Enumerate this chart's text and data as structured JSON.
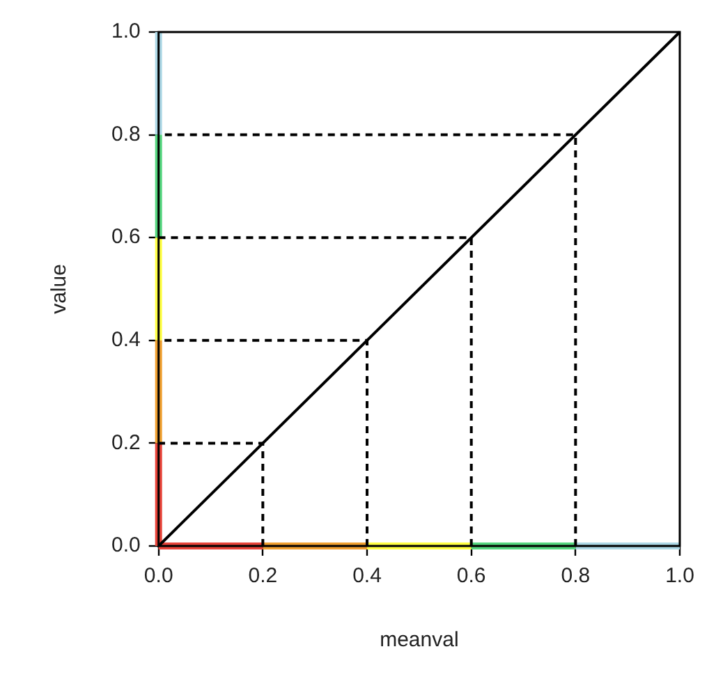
{
  "chart_data": {
    "type": "line",
    "xlabel": "meanval",
    "ylabel": "value",
    "xlim": [
      0,
      1
    ],
    "ylim": [
      0,
      1
    ],
    "xticks": [
      {
        "value": 0,
        "label": "0.0"
      },
      {
        "value": 0.2,
        "label": "0.2"
      },
      {
        "value": 0.4,
        "label": "0.4"
      },
      {
        "value": 0.6,
        "label": "0.6"
      },
      {
        "value": 0.8,
        "label": "0.8"
      },
      {
        "value": 1,
        "label": "1.0"
      }
    ],
    "yticks": [
      {
        "value": 0,
        "label": "0.0"
      },
      {
        "value": 0.2,
        "label": "0.2"
      },
      {
        "value": 0.4,
        "label": "0.4"
      },
      {
        "value": 0.6,
        "label": "0.6"
      },
      {
        "value": 0.8,
        "label": "0.8"
      },
      {
        "value": 1,
        "label": "1.0"
      }
    ],
    "grid": false,
    "legend": false,
    "marker": "none",
    "series": [
      {
        "x": [
          0,
          1
        ],
        "values": [
          0,
          1
        ],
        "color": "#000000",
        "line_style": "solid"
      },
      {
        "x": [
          0.2,
          0.2,
          0
        ],
        "values": [
          0,
          0.2,
          0.2
        ],
        "color": "#000000",
        "line_style": "dashed"
      },
      {
        "x": [
          0.4,
          0.4,
          0
        ],
        "values": [
          0,
          0.4,
          0.4
        ],
        "color": "#000000",
        "line_style": "dashed"
      },
      {
        "x": [
          0.6,
          0.6,
          0
        ],
        "values": [
          0,
          0.6,
          0.6
        ],
        "color": "#000000",
        "line_style": "dashed"
      },
      {
        "x": [
          0.8,
          0.8,
          0
        ],
        "values": [
          0,
          0.8,
          0.8
        ],
        "color": "#000000",
        "line_style": "dashed"
      },
      {
        "x": [
          0,
          0.2
        ],
        "values": [
          0,
          0
        ],
        "color": "#e8443a",
        "line_style": "solid"
      },
      {
        "x": [
          0.2,
          0.4
        ],
        "values": [
          0,
          0
        ],
        "color": "#f0a030",
        "line_style": "solid"
      },
      {
        "x": [
          0.4,
          0.6
        ],
        "values": [
          0,
          0
        ],
        "color": "#ffff44",
        "line_style": "solid"
      },
      {
        "x": [
          0.6,
          0.8
        ],
        "values": [
          0,
          0
        ],
        "color": "#55d67f",
        "line_style": "solid"
      },
      {
        "x": [
          0.8,
          1
        ],
        "values": [
          0,
          0
        ],
        "color": "#add8e6",
        "line_style": "solid"
      },
      {
        "x": [
          0,
          0
        ],
        "values": [
          0,
          0.2
        ],
        "color": "#e8443a",
        "line_style": "solid"
      },
      {
        "x": [
          0,
          0
        ],
        "values": [
          0.2,
          0.4
        ],
        "color": "#f0a030",
        "line_style": "solid"
      },
      {
        "x": [
          0,
          0
        ],
        "values": [
          0.4,
          0.6
        ],
        "color": "#ffff44",
        "line_style": "solid"
      },
      {
        "x": [
          0,
          0
        ],
        "values": [
          0.6,
          0.8
        ],
        "color": "#55d67f",
        "line_style": "solid"
      },
      {
        "x": [
          0,
          0
        ],
        "values": [
          0.8,
          1
        ],
        "color": "#add8e6",
        "line_style": "solid"
      }
    ]
  }
}
